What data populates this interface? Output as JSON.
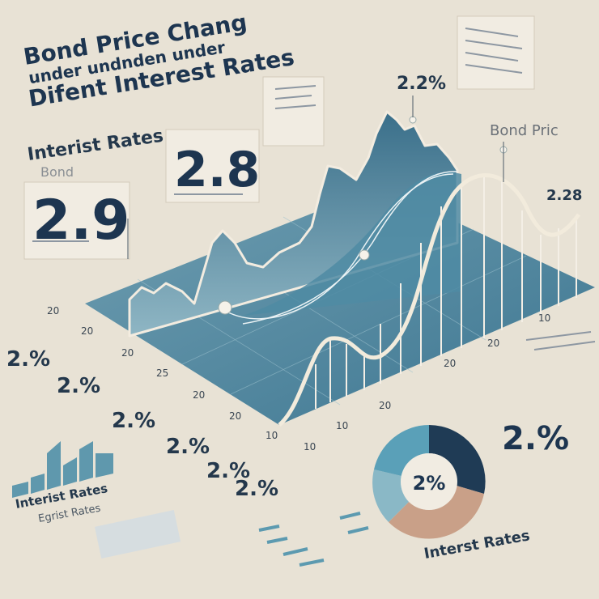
{
  "title": {
    "line1": "Bond Price Chang",
    "line2": "under undnden under",
    "line3": "Difent Interest Rates"
  },
  "cards": [
    {
      "label": "Interist Rates",
      "sublabel": "Bond",
      "value": "2.9"
    },
    {
      "value": "2.8"
    }
  ],
  "callouts": [
    "2.2%",
    "Bond Pric",
    "2.28"
  ],
  "left_labels": [
    "2.%",
    "2.%",
    "2.%",
    "2.%",
    "2.%",
    "2.%"
  ],
  "axis_labels": [
    "20",
    "20",
    "20",
    "25",
    "20",
    "20",
    "10",
    "10",
    "10",
    "20",
    "20",
    "20",
    "10"
  ],
  "right_value": "2.%",
  "donut": {
    "label": "2%",
    "caption": "Interst Rates"
  },
  "bottom_left": {
    "line1": "Interist Rates",
    "line2": "Egrist Rates"
  }
}
